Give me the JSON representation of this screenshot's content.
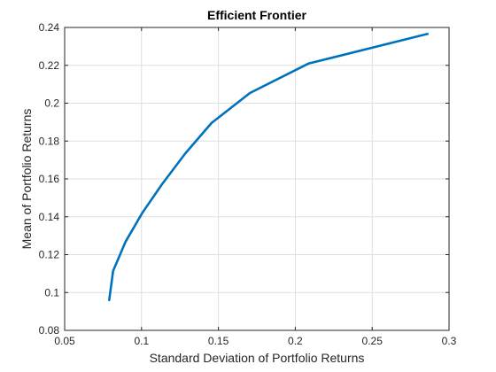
{
  "chart_data": {
    "type": "line",
    "title": "Efficient  Frontier",
    "xlabel": "Standard Deviation of Portfolio Returns",
    "ylabel": "Mean of Portfolio Returns",
    "xlim": [
      0.05,
      0.3
    ],
    "ylim": [
      0.08,
      0.24
    ],
    "xticks": [
      0.05,
      0.1,
      0.15,
      0.2,
      0.25,
      0.3
    ],
    "xtick_labels": [
      "0.05",
      "0.1",
      "0.15",
      "0.2",
      "0.25",
      "0.3"
    ],
    "yticks": [
      0.08,
      0.1,
      0.12,
      0.14,
      0.16,
      0.18,
      0.2,
      0.22,
      0.24
    ],
    "ytick_labels": [
      "0.08",
      "0.1",
      "0.12",
      "0.14",
      "0.16",
      "0.18",
      "0.2",
      "0.22",
      "0.24"
    ],
    "grid": true,
    "series": [
      {
        "color": "#0072BD",
        "x": [
          0.079,
          0.0815,
          0.0895,
          0.1005,
          0.1135,
          0.1285,
          0.1455,
          0.1705,
          0.2085,
          0.286
        ],
        "y": [
          0.096,
          0.1114,
          0.1267,
          0.1421,
          0.1574,
          0.1735,
          0.1895,
          0.2054,
          0.2209,
          0.2366
        ]
      }
    ]
  }
}
